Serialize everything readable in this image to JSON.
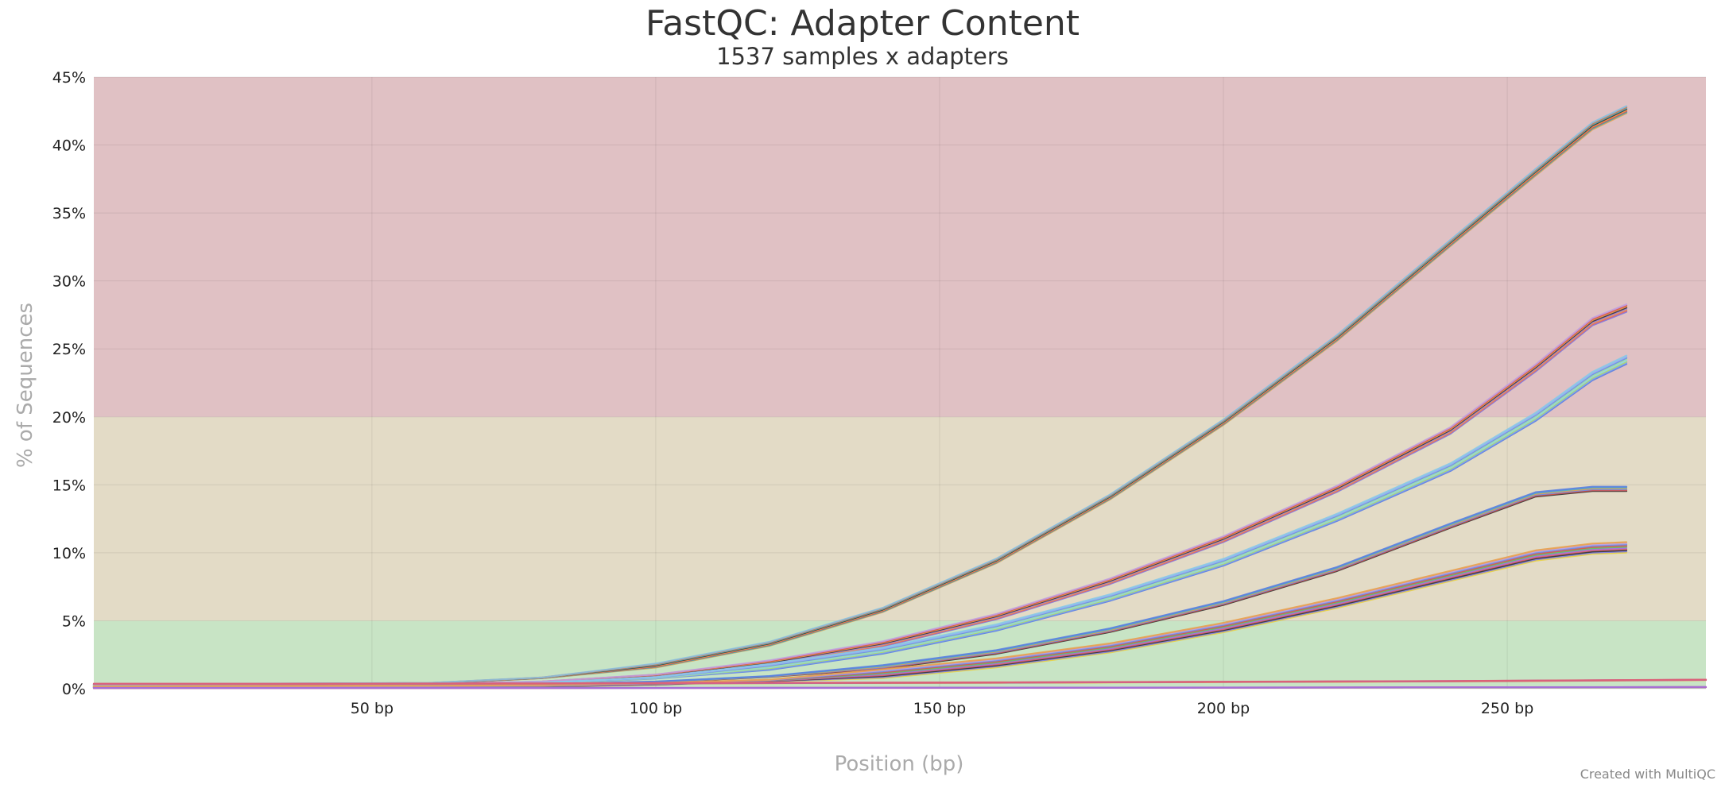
{
  "chart_data": {
    "type": "line",
    "title": "FastQC: Adapter Content",
    "subtitle": "1537 samples x adapters",
    "xlabel": "Position (bp)",
    "ylabel": "% of Sequences",
    "xlim": [
      1,
      285
    ],
    "ylim": [
      0,
      45
    ],
    "x_ticks": [
      50,
      100,
      150,
      200,
      250
    ],
    "x_tick_labels": [
      "50 bp",
      "100 bp",
      "150 bp",
      "200 bp",
      "250 bp"
    ],
    "y_ticks": [
      0,
      5,
      10,
      15,
      20,
      25,
      30,
      35,
      40,
      45
    ],
    "y_tick_labels": [
      "0%",
      "5%",
      "10%",
      "15%",
      "20%",
      "25%",
      "30%",
      "35%",
      "40%",
      "45%"
    ],
    "grid": true,
    "legend": "none",
    "bands": [
      {
        "from": 0,
        "to": 5,
        "color": "#c8e4c5"
      },
      {
        "from": 5,
        "to": 20,
        "color": "#e3dbc6"
      },
      {
        "from": 20,
        "to": 45,
        "color": "#e0c1c4"
      }
    ],
    "series_groups": [
      {
        "x": [
          1,
          60,
          80,
          100,
          120,
          140,
          160,
          180,
          200,
          220,
          240,
          255,
          265,
          271
        ],
        "colors": [
          "#e8a04c",
          "#33aabb",
          "#d9534f",
          "#f0a050",
          "#333333",
          "#4fb3c8",
          "#e07040",
          "#88c0e0"
        ],
        "values": [
          0.3,
          0.4,
          0.8,
          1.7,
          3.3,
          5.8,
          9.4,
          14.1,
          19.6,
          25.8,
          32.8,
          38.0,
          41.4,
          42.6
        ],
        "spread": 0.04
      },
      {
        "x": [
          1,
          60,
          80,
          100,
          120,
          140,
          160,
          180,
          200,
          220,
          240,
          255,
          265,
          271
        ],
        "colors": [
          "#7b7be0",
          "#e06070",
          "#e8a04c",
          "#9a7be0",
          "#333333",
          "#f0a050",
          "#d9534f",
          "#c0a0e0"
        ],
        "values": [
          0.2,
          0.3,
          0.5,
          1.0,
          1.9,
          3.3,
          5.3,
          7.9,
          11.0,
          14.7,
          19.0,
          23.6,
          27.0,
          28.0
        ],
        "spread": 0.05
      },
      {
        "x": [
          1,
          60,
          80,
          100,
          120,
          140,
          160,
          180,
          200,
          220,
          240,
          255,
          265,
          271
        ],
        "colors": [
          "#5b7fe0",
          "#7f9ff0",
          "#b0e060",
          "#90d0f0",
          "#a0e0a0",
          "#6a8fe8",
          "#9ab0f0",
          "#88c8e8"
        ],
        "values": [
          0.2,
          0.3,
          0.4,
          0.8,
          1.6,
          2.8,
          4.5,
          6.7,
          9.3,
          12.6,
          16.3,
          20.0,
          23.0,
          24.2
        ],
        "spread": 0.06
      },
      {
        "x": [
          1,
          60,
          80,
          100,
          120,
          140,
          160,
          180,
          200,
          220,
          240,
          255,
          265,
          271
        ],
        "colors": [
          "#333333",
          "#d9534f",
          "#6a8fe8",
          "#e8a04c",
          "#4fb3c8",
          "#5b7fe0"
        ],
        "values": [
          0.1,
          0.2,
          0.3,
          0.5,
          0.9,
          1.6,
          2.7,
          4.3,
          6.3,
          8.8,
          12.0,
          14.3,
          14.7,
          14.7
        ],
        "spread": 0.05
      },
      {
        "x": [
          1,
          60,
          80,
          100,
          120,
          140,
          160,
          180,
          200,
          220,
          240,
          255,
          265,
          271
        ],
        "colors": [
          "#e8d040",
          "#7b7be0",
          "#333333",
          "#e06070",
          "#a070e0",
          "#60c060",
          "#d9534f",
          "#6a8fe8",
          "#c0a0e0",
          "#e8a04c"
        ],
        "values": [
          0.1,
          0.15,
          0.2,
          0.35,
          0.6,
          1.1,
          1.9,
          3.0,
          4.5,
          6.3,
          8.3,
          9.8,
          10.3,
          10.4
        ],
        "spread": 0.07
      },
      {
        "x": [
          1,
          40,
          80,
          120,
          160,
          200,
          240,
          285
        ],
        "colors": [
          "#e8d040",
          "#f0a050",
          "#d9534f",
          "#7b7be0",
          "#c060c0",
          "#e06070"
        ],
        "values": [
          0.35,
          0.35,
          0.38,
          0.42,
          0.45,
          0.5,
          0.55,
          0.65
        ],
        "spread": 0.03
      },
      {
        "x": [
          1,
          40,
          80,
          120,
          160,
          200,
          240,
          285
        ],
        "colors": [
          "#d94f9a",
          "#7b7be0",
          "#e06070",
          "#a070e0"
        ],
        "values": [
          0.05,
          0.05,
          0.05,
          0.06,
          0.07,
          0.08,
          0.1,
          0.12
        ],
        "spread": 0.02
      }
    ]
  },
  "footer": {
    "credit": "Created with MultiQC"
  }
}
